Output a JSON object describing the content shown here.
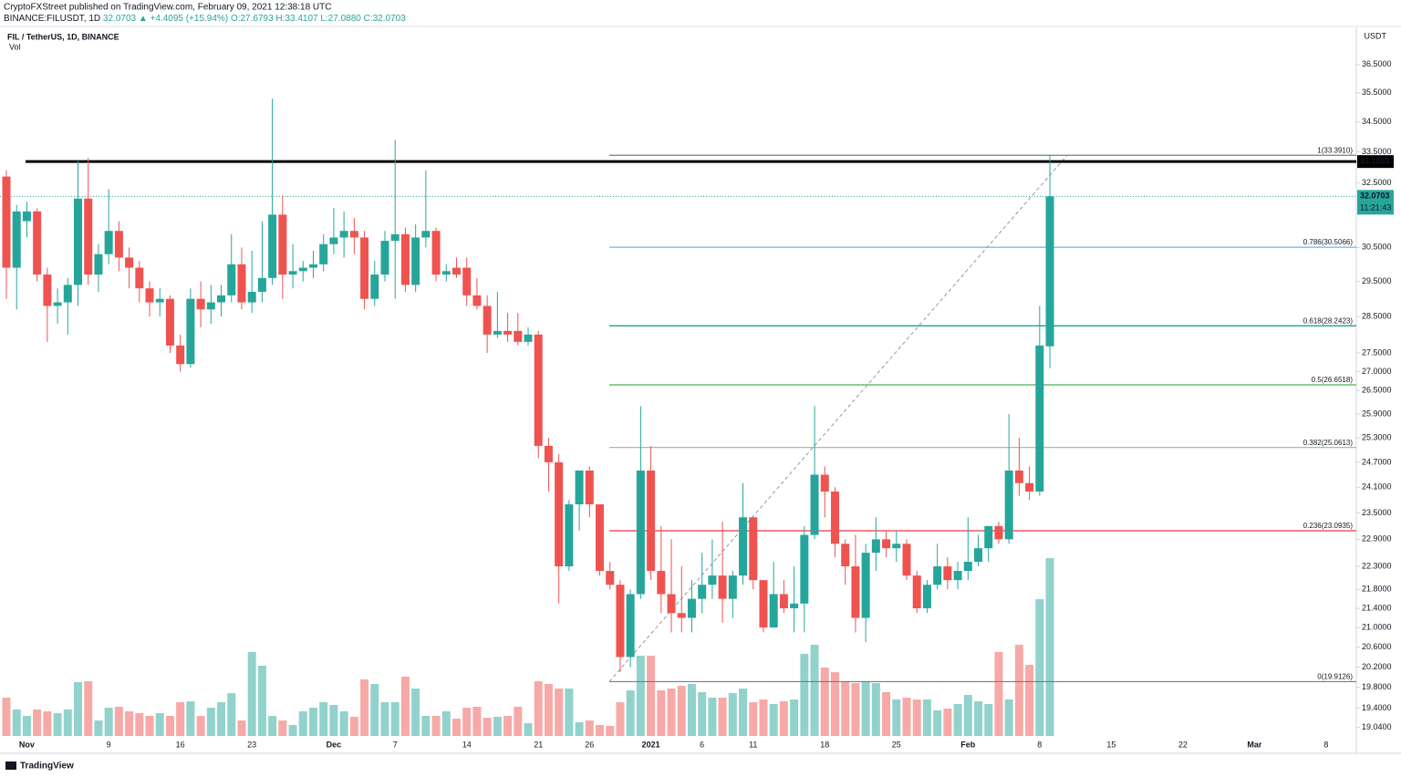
{
  "header": {
    "publisher": "CryptoFXStreet published on TradingView.com, February 09, 2021 12:38:18 UTC",
    "symbol": "BINANCE:FILUSDT, 1D",
    "change": "32.0703 ▲ +4.4095 (+15.94%)",
    "ohlc": "O:27.6793 H:33.4107 L:27.0880 C:32.0703"
  },
  "footer": {
    "brand": "TradingView"
  },
  "chart_data": {
    "type": "candlestick",
    "title": "FIL / TetherUS, 1D, BINANCE",
    "volume_label": "Vol",
    "currency": "USDT",
    "log_scale": true,
    "up_color": "#26a69a",
    "down_color": "#ef5350",
    "categories": [
      null,
      null,
      "Nov",
      null,
      null,
      null,
      null,
      null,
      null,
      null,
      "9",
      null,
      null,
      null,
      null,
      null,
      null,
      "16",
      null,
      null,
      null,
      null,
      null,
      null,
      "23",
      null,
      null,
      null,
      null,
      null,
      null,
      null,
      "Dec",
      null,
      null,
      null,
      null,
      null,
      "7",
      null,
      null,
      null,
      null,
      null,
      null,
      "14",
      null,
      null,
      null,
      null,
      null,
      null,
      "21",
      null,
      null,
      null,
      null,
      "26",
      null,
      null,
      null,
      null,
      null,
      "2021",
      null,
      null,
      null,
      null,
      "6",
      null,
      null,
      null,
      null,
      "11",
      null,
      null,
      null,
      null,
      null,
      null,
      "18",
      null,
      null,
      null,
      null,
      null,
      null,
      "25",
      null,
      null,
      null,
      null,
      null,
      null,
      "Feb",
      null,
      null,
      null,
      null,
      null,
      null,
      "8",
      null,
      null,
      null,
      null,
      null,
      null,
      "15",
      null,
      null,
      null,
      null,
      null,
      null,
      "22",
      null,
      null,
      null,
      null,
      null,
      null,
      "Mar",
      null,
      null,
      null,
      null,
      null,
      null,
      "8",
      null,
      null
    ],
    "open": [
      32.7,
      29.9,
      31.3,
      31.6,
      29.7,
      28.8,
      28.9,
      29.4,
      32.0,
      29.7,
      30.3,
      31.0,
      30.2,
      29.9,
      29.3,
      28.9,
      29.0,
      27.7,
      27.2,
      29.0,
      28.7,
      28.9,
      29.1,
      30.0,
      28.9,
      29.2,
      29.6,
      31.5,
      29.7,
      29.8,
      29.9,
      30.0,
      30.6,
      30.8,
      31.0,
      30.8,
      29.0,
      29.7,
      30.7,
      30.9,
      29.4,
      30.8,
      31.0,
      29.7,
      29.9,
      29.9,
      29.1,
      28.8,
      28.0,
      28.1,
      28.1,
      27.8,
      28.0,
      25.1,
      24.7,
      22.3,
      23.7,
      24.5,
      23.7,
      22.2,
      21.9,
      20.4,
      21.7,
      24.5,
      22.2,
      21.7,
      21.3,
      21.2,
      21.6,
      21.9,
      22.1,
      21.6,
      22.1,
      23.4,
      22.0,
      21.0,
      21.7,
      21.4,
      21.5,
      23.0,
      24.4,
      24.0,
      22.8,
      22.3,
      21.2,
      22.6,
      22.9,
      22.7,
      22.8,
      22.1,
      21.4,
      21.9,
      22.3,
      22.0,
      22.2,
      22.4,
      22.7,
      23.2,
      22.9,
      24.5,
      24.2,
      24.0,
      27.6793,
      null,
      null,
      null,
      null,
      null,
      null,
      null,
      null,
      null,
      null,
      null,
      null,
      null,
      null,
      null,
      null,
      null,
      null,
      null,
      null,
      null,
      null,
      null,
      null,
      null,
      null,
      null,
      null,
      null
    ],
    "high": [
      32.9,
      31.8,
      31.9,
      31.7,
      29.9,
      29.3,
      29.6,
      33.2,
      33.3,
      30.6,
      32.3,
      31.3,
      30.5,
      30.1,
      29.5,
      29.3,
      29.1,
      28.0,
      29.3,
      29.5,
      29.4,
      29.4,
      30.9,
      30.5,
      30.4,
      31.3,
      35.3,
      32.1,
      30.6,
      30.1,
      30.4,
      30.9,
      31.7,
      31.6,
      31.4,
      31.0,
      30.1,
      31.0,
      33.9,
      31.1,
      31.2,
      32.9,
      31.1,
      30.0,
      30.2,
      30.2,
      29.6,
      29.1,
      29.2,
      28.6,
      28.6,
      28.2,
      28.1,
      25.3,
      24.9,
      23.8,
      24.5,
      24.6,
      23.7,
      22.4,
      22.0,
      21.8,
      26.1,
      25.1,
      23.2,
      22.9,
      22.3,
      22.0,
      22.6,
      22.9,
      23.3,
      22.2,
      24.2,
      23.4,
      22.0,
      22.4,
      22.0,
      22.3,
      23.2,
      26.1,
      24.6,
      24.1,
      22.9,
      23.0,
      22.8,
      23.4,
      23.1,
      23.1,
      22.9,
      22.2,
      22.0,
      22.8,
      22.5,
      22.4,
      23.4,
      23.0,
      23.2,
      23.3,
      25.9,
      25.3,
      24.6,
      28.8,
      33.4107,
      null,
      null,
      null,
      null,
      null,
      null,
      null,
      null,
      null,
      null,
      null,
      null,
      null,
      null,
      null,
      null,
      null,
      null,
      null,
      null,
      null,
      null,
      null,
      null,
      null,
      null,
      null,
      null,
      null
    ],
    "low": [
      29.0,
      28.7,
      30.8,
      29.5,
      27.8,
      28.3,
      28.0,
      28.8,
      29.4,
      29.2,
      30.0,
      29.8,
      29.3,
      28.9,
      28.5,
      28.5,
      27.5,
      27.0,
      27.1,
      28.2,
      28.3,
      28.5,
      28.9,
      28.7,
      28.6,
      28.9,
      29.4,
      29.0,
      29.3,
      29.5,
      29.6,
      29.8,
      30.3,
      30.2,
      30.3,
      28.7,
      28.8,
      29.5,
      29.0,
      29.2,
      29.2,
      30.5,
      29.5,
      29.5,
      29.6,
      28.8,
      28.7,
      27.5,
      27.9,
      27.8,
      27.7,
      27.7,
      24.8,
      24.0,
      21.5,
      22.2,
      23.1,
      23.4,
      22.1,
      21.8,
      20.1,
      20.2,
      21.6,
      22.0,
      21.3,
      20.9,
      20.9,
      20.9,
      21.3,
      21.6,
      21.1,
      21.2,
      21.9,
      21.8,
      20.9,
      21.0,
      21.3,
      20.9,
      20.9,
      22.9,
      23.4,
      22.5,
      21.9,
      20.9,
      20.7,
      22.2,
      22.5,
      22.4,
      22.0,
      21.3,
      21.3,
      21.8,
      21.8,
      21.8,
      22.0,
      22.3,
      22.4,
      22.8,
      22.8,
      23.9,
      23.8,
      23.9,
      27.088,
      null,
      null,
      null,
      null,
      null,
      null,
      null,
      null,
      null,
      null,
      null,
      null,
      null,
      null,
      null,
      null,
      null,
      null,
      null,
      null,
      null,
      null,
      null,
      null,
      null,
      null,
      null,
      null,
      null
    ],
    "close": [
      29.9,
      31.6,
      31.6,
      29.7,
      28.8,
      28.9,
      29.4,
      32.0,
      29.7,
      30.3,
      31.0,
      30.2,
      29.9,
      29.3,
      28.9,
      29.0,
      27.7,
      27.2,
      29.0,
      28.7,
      28.9,
      29.1,
      30.0,
      28.9,
      29.2,
      29.6,
      31.5,
      29.7,
      29.8,
      29.9,
      30.0,
      30.6,
      30.8,
      31.0,
      30.8,
      29.0,
      29.7,
      30.7,
      30.9,
      29.4,
      30.8,
      31.0,
      29.7,
      29.8,
      29.7,
      29.1,
      28.8,
      28.0,
      28.1,
      28.0,
      27.8,
      28.0,
      25.1,
      24.7,
      22.3,
      23.7,
      24.5,
      23.7,
      22.2,
      21.9,
      20.4,
      21.7,
      24.5,
      22.2,
      21.7,
      21.3,
      21.2,
      21.6,
      21.9,
      22.1,
      21.6,
      22.1,
      23.4,
      22.0,
      21.0,
      21.7,
      21.4,
      21.5,
      23.0,
      24.4,
      24.0,
      22.8,
      22.3,
      21.2,
      22.6,
      22.9,
      22.7,
      22.8,
      22.1,
      21.4,
      21.9,
      22.3,
      22.0,
      22.2,
      22.4,
      22.7,
      23.2,
      22.9,
      24.5,
      24.2,
      24.0,
      27.7,
      32.0703,
      null,
      null,
      null,
      null,
      null,
      null,
      null,
      null,
      null,
      null,
      null,
      null,
      null,
      null,
      null,
      null,
      null,
      null,
      null,
      null,
      null,
      null,
      null,
      null,
      null,
      null,
      null,
      null,
      null
    ],
    "volume": [
      42,
      29,
      22,
      29,
      27,
      25,
      29,
      59,
      60,
      17,
      31,
      32,
      27,
      25,
      22,
      25,
      22,
      37,
      38,
      22,
      31,
      37,
      47,
      17,
      92,
      77,
      22,
      17,
      12,
      27,
      31,
      37,
      34,
      27,
      21,
      62,
      57,
      37,
      37,
      65,
      52,
      22,
      22,
      27,
      19,
      31,
      32,
      20,
      21,
      22,
      32,
      14,
      60,
      57,
      52,
      52,
      15,
      17,
      12,
      11,
      37,
      50,
      88,
      88,
      50,
      52,
      55,
      57,
      48,
      42,
      42,
      47,
      52,
      37,
      40,
      35,
      38,
      40,
      90,
      100,
      75,
      70,
      60,
      58,
      60,
      58,
      48,
      40,
      42,
      40,
      40,
      28,
      30,
      35,
      45,
      38,
      35,
      92,
      40,
      100,
      78,
      150,
      195,
      null,
      null,
      null,
      null,
      null,
      null,
      null,
      null,
      null,
      null,
      null,
      null,
      null,
      null,
      null,
      null,
      null,
      null,
      null,
      null,
      null,
      null,
      null,
      null,
      null,
      null,
      null,
      null,
      null
    ],
    "ylim": [
      18.56,
      37.86
    ],
    "yticks": [
      {
        "value": 36.5,
        "label": "36.5000"
      },
      {
        "value": 35.5,
        "label": "35.5000"
      },
      {
        "value": 34.5,
        "label": "34.5000"
      },
      {
        "value": 33.5,
        "label": "33.5000"
      },
      {
        "value": 32.5,
        "label": "32.5000"
      },
      {
        "value": 30.5,
        "label": "30.5000"
      },
      {
        "value": 29.5,
        "label": "29.5000"
      },
      {
        "value": 28.5,
        "label": "28.5000"
      },
      {
        "value": 27.5,
        "label": "27.5000"
      },
      {
        "value": 27,
        "label": "27.0000"
      },
      {
        "value": 26.5,
        "label": "26.5000"
      },
      {
        "value": 25.9,
        "label": "25.9000"
      },
      {
        "value": 25.3,
        "label": "25.3000"
      },
      {
        "value": 24.7,
        "label": "24.7000"
      },
      {
        "value": 24.1,
        "label": "24.1000"
      },
      {
        "value": 23.5,
        "label": "23.5000"
      },
      {
        "value": 22.9,
        "label": "22.9000"
      },
      {
        "value": 22.3,
        "label": "22.3000"
      },
      {
        "value": 21.8,
        "label": "21.8000"
      },
      {
        "value": 21.4,
        "label": "21.4000"
      },
      {
        "value": 21,
        "label": "21.0000"
      },
      {
        "value": 20.6,
        "label": "20.6000"
      },
      {
        "value": 20.2,
        "label": "20.2000"
      },
      {
        "value": 19.8,
        "label": "19.8000"
      },
      {
        "value": 19.4,
        "label": "19.4000"
      },
      {
        "value": 19.04,
        "label": "19.0400"
      }
    ],
    "fib_levels": [
      {
        "value": 33.391,
        "label": "1(33.3910)",
        "color": "#787b86"
      },
      {
        "value": 30.5066,
        "label": "0.786(30.5066)",
        "color": "#64b5f6"
      },
      {
        "value": 28.2423,
        "label": "0.618(28.2423)",
        "color": "#089981"
      },
      {
        "value": 26.6518,
        "label": "0.5(26.6518)",
        "color": "#4caf50"
      },
      {
        "value": 25.0613,
        "label": "0.382(25.0613)",
        "color": "#81c784"
      },
      {
        "value": 23.0935,
        "label": "0.236(23.0935)",
        "color": "#f23645"
      },
      {
        "value": 19.9126,
        "label": "0(19.9126)",
        "color": "#787b86"
      }
    ],
    "resistance": 33.1853,
    "last_price": 32.0703,
    "countdown": "11:21:43"
  }
}
